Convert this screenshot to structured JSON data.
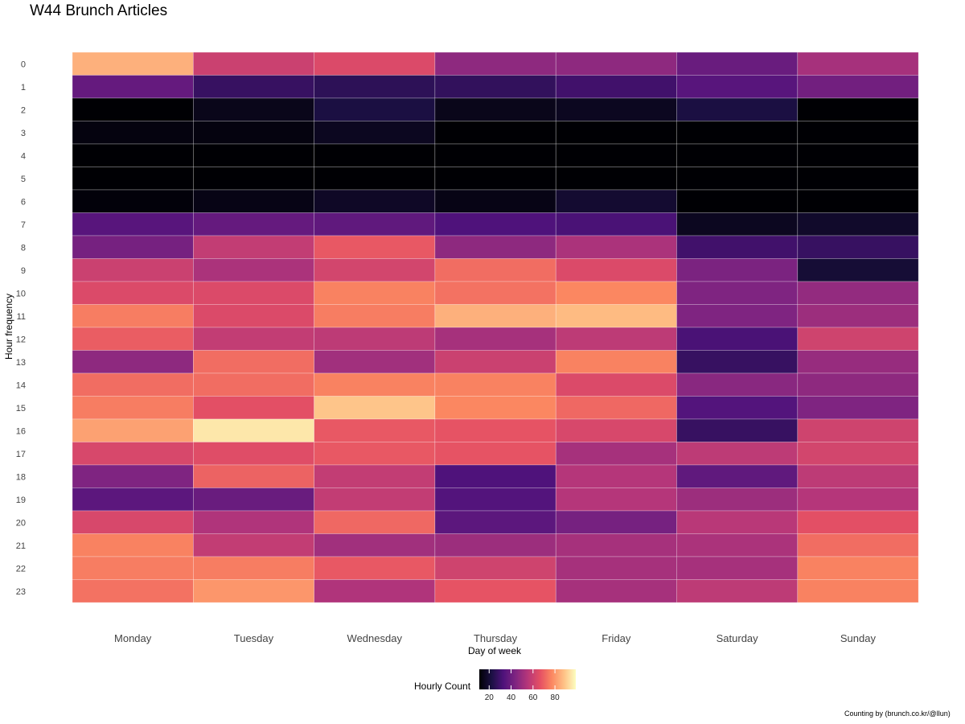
{
  "chart_data": {
    "type": "heatmap",
    "title": "W44 Brunch Articles",
    "xlabel": "Day of week",
    "ylabel": "Hour frequency",
    "x": [
      "Monday",
      "Tuesday",
      "Wednesday",
      "Thursday",
      "Friday",
      "Saturday",
      "Sunday"
    ],
    "y": [
      "0",
      "1",
      "2",
      "3",
      "4",
      "5",
      "6",
      "7",
      "8",
      "9",
      "10",
      "11",
      "12",
      "13",
      "14",
      "15",
      "16",
      "17",
      "18",
      "19",
      "20",
      "21",
      "22",
      "23"
    ],
    "values": [
      [
        85,
        60,
        64,
        47,
        47,
        39,
        52
      ],
      [
        38,
        28,
        26,
        27,
        30,
        35,
        41
      ],
      [
        10,
        15,
        22,
        15,
        16,
        22,
        4
      ],
      [
        13,
        13,
        16,
        6,
        7,
        7,
        6
      ],
      [
        7,
        8,
        9,
        10,
        7,
        2,
        2
      ],
      [
        6,
        7,
        3,
        7,
        5,
        9,
        7
      ],
      [
        12,
        14,
        17,
        14,
        19,
        8,
        11
      ],
      [
        35,
        38,
        37,
        33,
        32,
        16,
        18
      ],
      [
        42,
        58,
        68,
        47,
        53,
        30,
        28
      ],
      [
        60,
        53,
        62,
        72,
        64,
        43,
        20
      ],
      [
        64,
        64,
        76,
        73,
        77,
        44,
        48
      ],
      [
        75,
        64,
        75,
        85,
        87,
        44,
        50
      ],
      [
        69,
        58,
        57,
        52,
        57,
        32,
        61
      ],
      [
        47,
        72,
        51,
        60,
        76,
        28,
        49
      ],
      [
        72,
        72,
        76,
        76,
        64,
        46,
        47
      ],
      [
        75,
        66,
        89,
        77,
        71,
        34,
        44
      ],
      [
        82,
        95,
        68,
        67,
        63,
        28,
        61
      ],
      [
        63,
        65,
        68,
        67,
        52,
        57,
        62
      ],
      [
        44,
        70,
        58,
        33,
        55,
        37,
        57
      ],
      [
        36,
        39,
        58,
        34,
        55,
        50,
        55
      ],
      [
        63,
        54,
        71,
        36,
        42,
        56,
        66
      ],
      [
        76,
        58,
        51,
        50,
        52,
        53,
        72
      ],
      [
        75,
        75,
        68,
        61,
        52,
        52,
        76
      ],
      [
        73,
        80,
        54,
        67,
        52,
        57,
        76
      ]
    ],
    "colorbar": {
      "label": "Hourly Count",
      "ticks": [
        "20",
        "40",
        "60",
        "80"
      ],
      "range": [
        11,
        99
      ],
      "palette": "magma",
      "position": "bottom"
    },
    "grid": false
  },
  "caption": "Counting by    (brunch.co.kr/@llun)"
}
